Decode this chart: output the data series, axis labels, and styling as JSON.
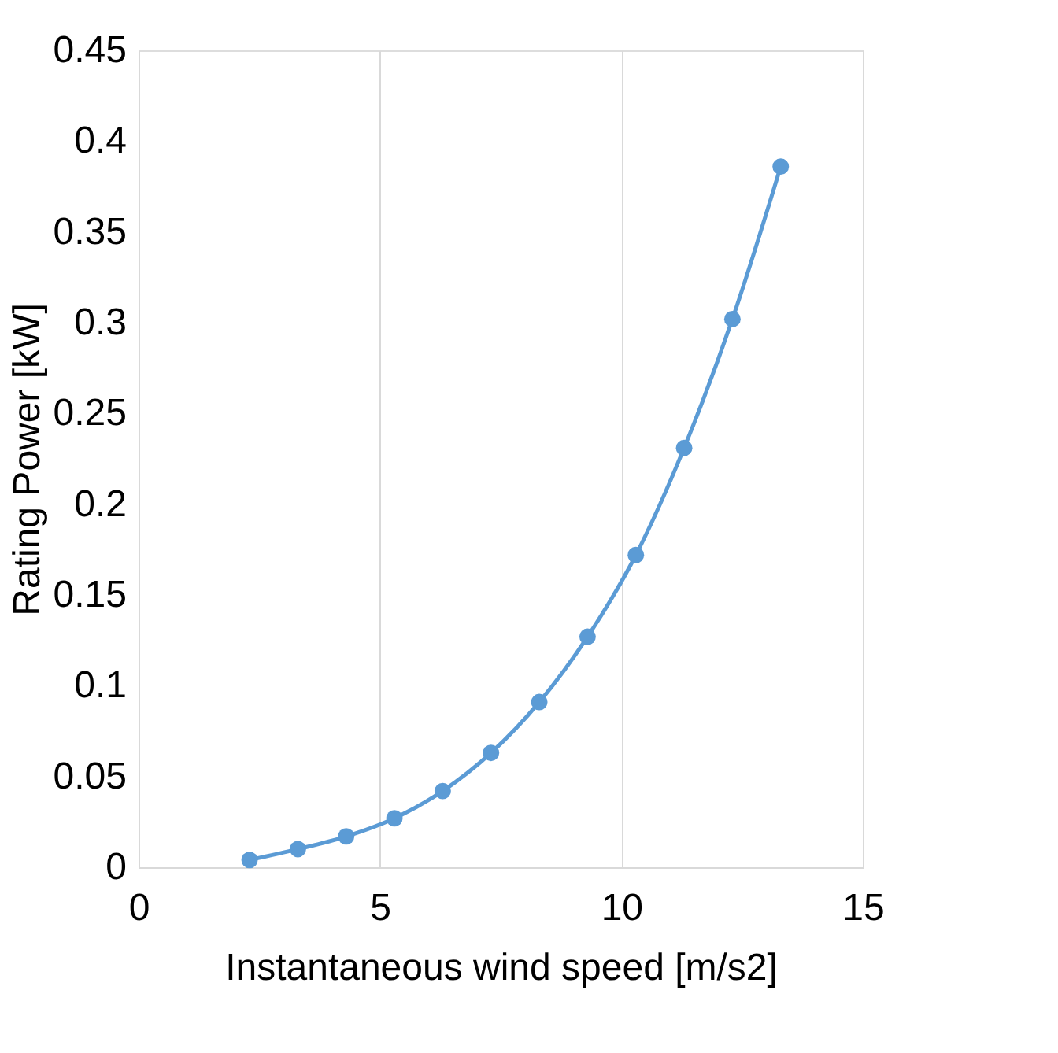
{
  "chart_data": {
    "type": "line",
    "xlabel": "Instantaneous wind speed [m/s2]",
    "ylabel": "Rating Power [kW]",
    "x": [
      2.3,
      3.3,
      4.3,
      5.3,
      6.3,
      7.3,
      8.3,
      9.3,
      10.3,
      11.3,
      12.3,
      13.3
    ],
    "series": [
      {
        "color": "#5b9bd5",
        "values": [
          0.004,
          0.01,
          0.017,
          0.027,
          0.042,
          0.063,
          0.091,
          0.127,
          0.172,
          0.231,
          0.302,
          0.386
        ]
      }
    ],
    "xlim": [
      0,
      15
    ],
    "xticks": [
      0,
      5,
      10,
      15
    ],
    "ylim": [
      0,
      0.45
    ],
    "yticks": [
      0,
      0.05,
      0.1,
      0.15,
      0.2,
      0.25,
      0.3,
      0.35,
      0.4,
      0.45
    ],
    "grid": "x",
    "marker": "circle",
    "line_style": "solid"
  }
}
